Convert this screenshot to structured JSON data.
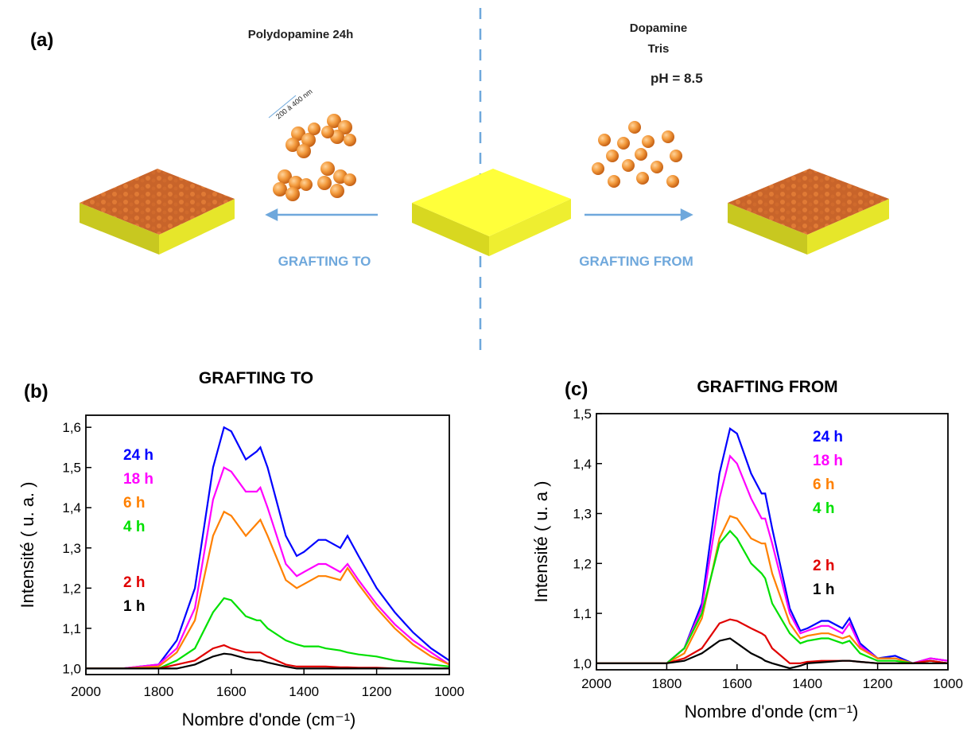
{
  "panel_a": {
    "label": "(a)",
    "left_title": "Polydopamine 24h",
    "size_note": "200 à 400 nm",
    "right_title_1": "Dopamine",
    "right_title_2": "Tris",
    "right_title_3": "pH = 8.5",
    "left_arrow_label": "GRAFTING TO",
    "right_arrow_label": "GRAFTING FROM"
  },
  "chart_data": [
    {
      "type": "line",
      "panel_label": "(b)",
      "title": "GRAFTING  TO",
      "xlabel": "Nombre d'onde (cm⁻¹)",
      "ylabel": "Intensité ( u. a. )",
      "xlim": [
        2000,
        1000
      ],
      "xticks": [
        2000,
        1800,
        1600,
        1400,
        1200,
        1000
      ],
      "ylim": [
        0.985,
        1.63
      ],
      "yticks": [
        {
          "value": 1.0,
          "label": "1,0"
        },
        {
          "value": 1.1,
          "label": "1,1"
        },
        {
          "value": 1.2,
          "label": "1,2"
        },
        {
          "value": 1.3,
          "label": "1,3"
        },
        {
          "value": 1.4,
          "label": "1,4"
        },
        {
          "value": 1.5,
          "label": "1,5"
        },
        {
          "value": 1.6,
          "label": "1,6"
        }
      ],
      "legend": "upper left",
      "x": [
        2000,
        1900,
        1800,
        1750,
        1700,
        1650,
        1620,
        1600,
        1560,
        1530,
        1520,
        1500,
        1450,
        1420,
        1400,
        1360,
        1340,
        1300,
        1280,
        1250,
        1200,
        1150,
        1100,
        1050,
        1000
      ],
      "series": [
        {
          "name": "24 h",
          "color": "#0000ff",
          "values": [
            1.0,
            1.0,
            1.01,
            1.07,
            1.2,
            1.5,
            1.6,
            1.59,
            1.52,
            1.54,
            1.55,
            1.5,
            1.33,
            1.28,
            1.29,
            1.32,
            1.32,
            1.3,
            1.33,
            1.28,
            1.2,
            1.14,
            1.09,
            1.05,
            1.02
          ]
        },
        {
          "name": "18 h",
          "color": "#ff00ff",
          "values": [
            1.0,
            1.0,
            1.01,
            1.05,
            1.15,
            1.42,
            1.5,
            1.49,
            1.44,
            1.44,
            1.45,
            1.4,
            1.26,
            1.23,
            1.24,
            1.26,
            1.26,
            1.24,
            1.26,
            1.22,
            1.16,
            1.11,
            1.07,
            1.04,
            1.01
          ]
        },
        {
          "name": "6 h",
          "color": "#ff8000",
          "values": [
            1.0,
            1.0,
            1.005,
            1.04,
            1.12,
            1.33,
            1.39,
            1.38,
            1.33,
            1.36,
            1.37,
            1.33,
            1.22,
            1.2,
            1.21,
            1.23,
            1.23,
            1.22,
            1.25,
            1.21,
            1.15,
            1.1,
            1.06,
            1.03,
            1.01
          ]
        },
        {
          "name": "4 h",
          "color": "#00e000",
          "values": [
            1.0,
            1.0,
            1.0,
            1.02,
            1.05,
            1.14,
            1.175,
            1.17,
            1.13,
            1.12,
            1.12,
            1.1,
            1.07,
            1.06,
            1.055,
            1.055,
            1.05,
            1.045,
            1.04,
            1.035,
            1.03,
            1.02,
            1.015,
            1.01,
            1.005
          ]
        },
        {
          "name": "2 h",
          "color": "#e00000",
          "values": [
            1.0,
            1.0,
            1.0,
            1.01,
            1.02,
            1.05,
            1.058,
            1.05,
            1.04,
            1.04,
            1.04,
            1.03,
            1.01,
            1.005,
            1.005,
            1.005,
            1.005,
            1.003,
            1.003,
            1.002,
            1.002,
            1.0,
            1.0,
            1.0,
            1.0
          ]
        },
        {
          "name": "1 h",
          "color": "#000000",
          "values": [
            1.0,
            1.0,
            1.0,
            1.0,
            1.01,
            1.03,
            1.037,
            1.035,
            1.025,
            1.02,
            1.02,
            1.015,
            1.005,
            1.0,
            1.0,
            1.0,
            1.0,
            1.0,
            1.0,
            1.0,
            1.0,
            1.0,
            1.0,
            1.0,
            1.0
          ]
        }
      ]
    },
    {
      "type": "line",
      "panel_label": "(c)",
      "title": "GRAFTING FROM",
      "xlabel": "Nombre d'onde (cm⁻¹)",
      "ylabel": "Intensité ( u. a )",
      "xlim": [
        2000,
        1000
      ],
      "xticks": [
        2000,
        1800,
        1600,
        1400,
        1200,
        1000
      ],
      "ylim": [
        0.987,
        1.5
      ],
      "yticks": [
        {
          "value": 1.0,
          "label": "1,0"
        },
        {
          "value": 1.1,
          "label": "1,1"
        },
        {
          "value": 1.2,
          "label": "1,2"
        },
        {
          "value": 1.3,
          "label": "1,3"
        },
        {
          "value": 1.4,
          "label": "1,4"
        },
        {
          "value": 1.5,
          "label": "1,5"
        }
      ],
      "legend": "upper right",
      "x": [
        2000,
        1900,
        1800,
        1750,
        1700,
        1650,
        1620,
        1600,
        1560,
        1530,
        1520,
        1500,
        1450,
        1420,
        1400,
        1360,
        1340,
        1300,
        1280,
        1250,
        1200,
        1150,
        1100,
        1050,
        1000
      ],
      "series": [
        {
          "name": "24 h",
          "color": "#0000ff",
          "values": [
            1.0,
            1.0,
            1.0,
            1.03,
            1.12,
            1.38,
            1.47,
            1.46,
            1.38,
            1.34,
            1.34,
            1.27,
            1.11,
            1.065,
            1.07,
            1.085,
            1.085,
            1.07,
            1.09,
            1.04,
            1.01,
            1.015,
            1.0,
            1.01,
            1.005
          ]
        },
        {
          "name": "18 h",
          "color": "#ff00ff",
          "values": [
            1.0,
            1.0,
            1.0,
            1.03,
            1.11,
            1.33,
            1.415,
            1.4,
            1.33,
            1.29,
            1.29,
            1.24,
            1.1,
            1.06,
            1.065,
            1.075,
            1.075,
            1.06,
            1.08,
            1.035,
            1.01,
            1.01,
            1.0,
            1.01,
            1.005
          ]
        },
        {
          "name": "6 h",
          "color": "#ff8000",
          "values": [
            1.0,
            1.0,
            1.0,
            1.02,
            1.09,
            1.25,
            1.295,
            1.29,
            1.25,
            1.24,
            1.24,
            1.18,
            1.08,
            1.05,
            1.055,
            1.06,
            1.06,
            1.05,
            1.055,
            1.03,
            1.01,
            1.01,
            1.0,
            1.005,
            1.0
          ]
        },
        {
          "name": "4 h",
          "color": "#00e000",
          "values": [
            1.0,
            1.0,
            1.0,
            1.03,
            1.1,
            1.24,
            1.265,
            1.25,
            1.2,
            1.18,
            1.17,
            1.12,
            1.06,
            1.04,
            1.045,
            1.05,
            1.05,
            1.04,
            1.045,
            1.02,
            1.005,
            1.005,
            1.0,
            1.005,
            1.0
          ]
        },
        {
          "name": "2 h",
          "color": "#e00000",
          "values": [
            1.0,
            1.0,
            1.0,
            1.01,
            1.03,
            1.08,
            1.088,
            1.085,
            1.07,
            1.06,
            1.055,
            1.03,
            1.0,
            1.0,
            1.003,
            1.005,
            1.005,
            1.005,
            1.005,
            1.003,
            1.0,
            1.0,
            1.0,
            1.005,
            1.0
          ]
        },
        {
          "name": "1 h",
          "color": "#000000",
          "values": [
            1.0,
            1.0,
            1.0,
            1.005,
            1.02,
            1.045,
            1.05,
            1.04,
            1.02,
            1.01,
            1.005,
            1.0,
            0.99,
            0.995,
            1.0,
            1.002,
            1.003,
            1.005,
            1.005,
            1.003,
            1.0,
            1.0,
            1.0,
            1.0,
            1.0
          ]
        }
      ]
    }
  ]
}
